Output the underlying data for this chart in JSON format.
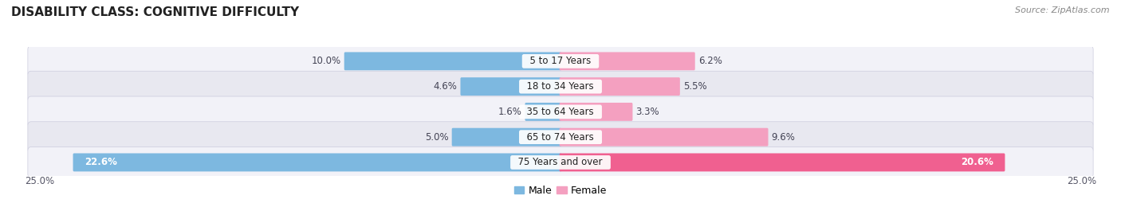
{
  "title": "DISABILITY CLASS: COGNITIVE DIFFICULTY",
  "source": "Source: ZipAtlas.com",
  "categories": [
    "5 to 17 Years",
    "18 to 34 Years",
    "35 to 64 Years",
    "65 to 74 Years",
    "75 Years and over"
  ],
  "male_values": [
    10.0,
    4.6,
    1.6,
    5.0,
    22.6
  ],
  "female_values": [
    6.2,
    5.5,
    3.3,
    9.6,
    20.6
  ],
  "male_color": "#7db8e0",
  "female_color_normal": "#f4a0c0",
  "female_color_large": "#f06090",
  "male_color_large": "#7db8e0",
  "row_bg_color_light": "#f2f2f8",
  "row_bg_color_dark": "#e8e8f0",
  "max_value": 25.0,
  "bar_height": 0.62,
  "title_fontsize": 11,
  "source_fontsize": 8,
  "label_fontsize": 8.5,
  "value_fontsize": 8.5,
  "category_fontsize": 8.5,
  "legend_fontsize": 9
}
